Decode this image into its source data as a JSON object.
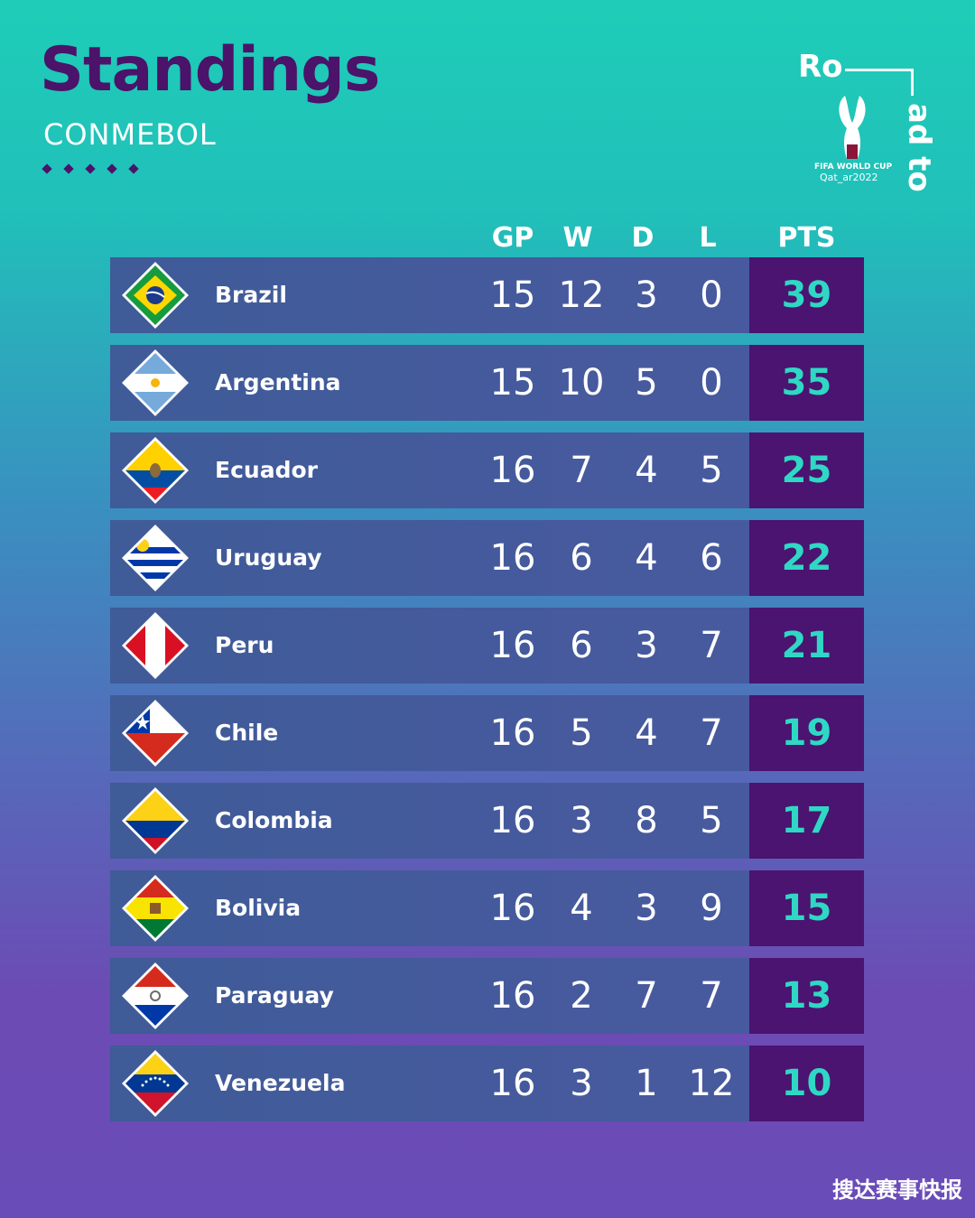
{
  "header": {
    "title": "Standings",
    "subtitle": "CONMEBOL"
  },
  "logo": {
    "ro": "Ro",
    "adto": "ad to",
    "fifa": "FIFA WORLD CUP",
    "qatar": "Qat_ar2022"
  },
  "columns": {
    "gp": "GP",
    "w": "W",
    "d": "D",
    "l": "L",
    "pts": "PTS"
  },
  "teams": [
    {
      "name": "Brazil",
      "gp": "15",
      "w": "12",
      "d": "3",
      "l": "0",
      "pts": "39",
      "flag": "brazil-flag-icon"
    },
    {
      "name": "Argentina",
      "gp": "15",
      "w": "10",
      "d": "5",
      "l": "0",
      "pts": "35",
      "flag": "argentina-flag-icon"
    },
    {
      "name": "Ecuador",
      "gp": "16",
      "w": "7",
      "d": "4",
      "l": "5",
      "pts": "25",
      "flag": "ecuador-flag-icon"
    },
    {
      "name": "Uruguay",
      "gp": "16",
      "w": "6",
      "d": "4",
      "l": "6",
      "pts": "22",
      "flag": "uruguay-flag-icon"
    },
    {
      "name": "Peru",
      "gp": "16",
      "w": "6",
      "d": "3",
      "l": "7",
      "pts": "21",
      "flag": "peru-flag-icon"
    },
    {
      "name": "Chile",
      "gp": "16",
      "w": "5",
      "d": "4",
      "l": "7",
      "pts": "19",
      "flag": "chile-flag-icon"
    },
    {
      "name": "Colombia",
      "gp": "16",
      "w": "3",
      "d": "8",
      "l": "5",
      "pts": "17",
      "flag": "colombia-flag-icon"
    },
    {
      "name": "Bolivia",
      "gp": "16",
      "w": "4",
      "d": "3",
      "l": "9",
      "pts": "15",
      "flag": "bolivia-flag-icon"
    },
    {
      "name": "Paraguay",
      "gp": "16",
      "w": "2",
      "d": "7",
      "l": "7",
      "pts": "13",
      "flag": "paraguay-flag-icon"
    },
    {
      "name": "Venezuela",
      "gp": "16",
      "w": "3",
      "d": "1",
      "l": "12",
      "pts": "10",
      "flag": "venezuela-flag-icon"
    }
  ],
  "colors": {
    "title": "#4b1369",
    "pts_bg": "#4a1470",
    "pts_text": "#2fd8c4"
  },
  "watermark": "搜达赛事快报"
}
